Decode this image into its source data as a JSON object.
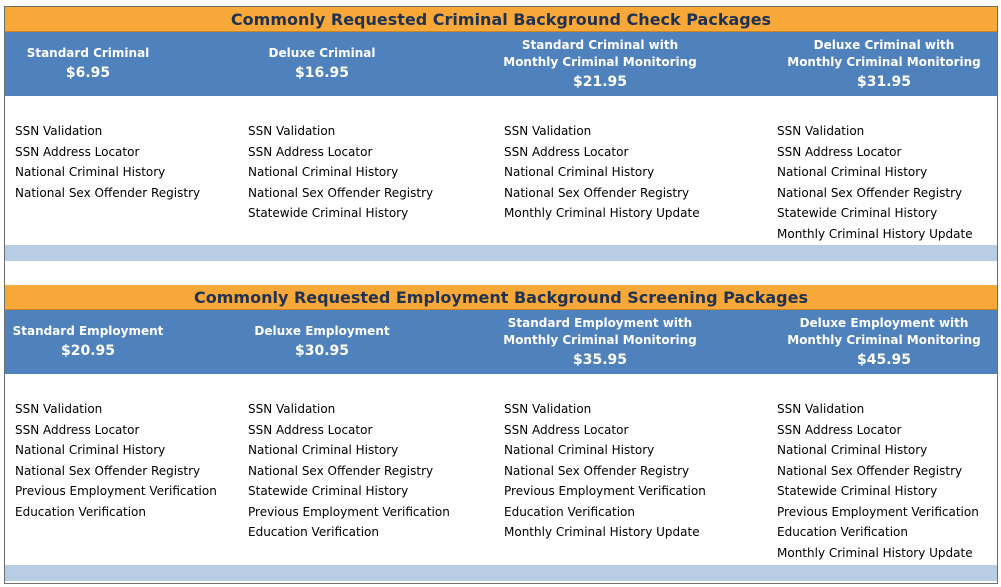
{
  "sections": [
    {
      "title": "Commonly Requested Criminal Background Check Packages",
      "packages": [
        {
          "name": "Standard Criminal",
          "price": "$6.95",
          "items": [
            "SSN Validation",
            "SSN Address Locator",
            "National Criminal History",
            "National Sex Offender Registry"
          ]
        },
        {
          "name": "Deluxe Criminal",
          "price": "$16.95",
          "items": [
            "SSN Validation",
            "SSN Address Locator",
            "National Criminal History",
            "National Sex Offender Registry",
            "Statewide Criminal History"
          ]
        },
        {
          "name": "Standard Criminal with\nMonthly Criminal Monitoring",
          "price": "$21.95",
          "items": [
            "SSN Validation",
            "SSN Address Locator",
            "National Criminal History",
            "National Sex Offender Registry",
            "Monthly Criminal History Update"
          ]
        },
        {
          "name": "Deluxe Criminal  with\nMonthly Criminal Monitoring",
          "price": "$31.95",
          "items": [
            "SSN Validation",
            "SSN Address Locator",
            "National Criminal History",
            "National Sex Offender Registry",
            "Statewide Criminal History",
            "Monthly Criminal History Update"
          ]
        }
      ]
    },
    {
      "title": "Commonly Requested Employment Background Screening Packages",
      "packages": [
        {
          "name": "Standard Employment",
          "price": "$20.95",
          "items": [
            "SSN Validation",
            "SSN Address Locator",
            "National Criminal History",
            "National Sex Offender Registry",
            "Previous Employment Verification",
            "Education Verification"
          ]
        },
        {
          "name": "Deluxe Employment",
          "price": "$30.95",
          "items": [
            "SSN Validation",
            "SSN Address Locator",
            "National Criminal History",
            "National Sex Offender Registry",
            "Statewide Criminal History",
            "Previous Employment Verification",
            "Education Verification"
          ]
        },
        {
          "name": "Standard Employment with\nMonthly Criminal Monitoring",
          "price": "$35.95",
          "items": [
            "SSN Validation",
            "SSN Address Locator",
            "National Criminal History",
            "National Sex Offender Registry",
            "Previous Employment Verification",
            "Education Verification",
            "Monthly Criminal History Update"
          ]
        },
        {
          "name": "Deluxe Employment with\nMonthly Criminal Monitoring",
          "price": "$45.95",
          "items": [
            "SSN Validation",
            "SSN Address Locator",
            "National Criminal History",
            "National Sex Offender Registry",
            "Statewide Criminal History",
            "Previous Employment Verification",
            "Education Verification",
            "Monthly Criminal History Update"
          ]
        }
      ]
    }
  ]
}
